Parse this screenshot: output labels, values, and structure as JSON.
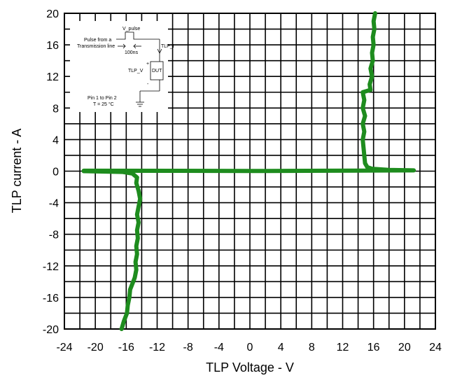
{
  "chart_data": {
    "type": "line",
    "xlabel": "TLP Voltage - V",
    "ylabel": "TLP current - A",
    "xlim": [
      -24,
      24
    ],
    "ylim": [
      -20,
      20
    ],
    "x_ticks": [
      "-24",
      "-20",
      "-16",
      "-12",
      "-8",
      "-4",
      "0",
      "4",
      "8",
      "12",
      "16",
      "20",
      "24"
    ],
    "y_ticks": [
      "20",
      "16",
      "12",
      "8",
      "4",
      "0",
      "-4",
      "-8",
      "-12",
      "-16",
      "-20"
    ],
    "grid": true,
    "grid_minor_x_step": 2,
    "grid_minor_y_step": 2,
    "series_color": "#1e8c1e",
    "series": [
      {
        "points": [
          [
            -21.5,
            0.05
          ],
          [
            -10,
            0.04
          ],
          [
            0,
            0.02
          ],
          [
            10,
            0.05
          ],
          [
            16,
            0.08
          ],
          [
            21.2,
            0.1
          ],
          [
            18,
            0.15
          ],
          [
            15.8,
            0.3
          ],
          [
            15.2,
            0.5
          ],
          [
            14.9,
            1.0
          ],
          [
            14.8,
            2.0
          ],
          [
            14.7,
            3.0
          ],
          [
            14.6,
            4.0
          ],
          [
            14.8,
            5.0
          ],
          [
            14.6,
            6.0
          ],
          [
            14.9,
            7.0
          ],
          [
            14.6,
            8.0
          ],
          [
            14.8,
            9.0
          ],
          [
            14.6,
            10.0
          ],
          [
            15.6,
            10.3
          ],
          [
            15.5,
            11.0
          ],
          [
            15.8,
            12.0
          ],
          [
            15.6,
            13.0
          ],
          [
            15.9,
            14.0
          ],
          [
            15.8,
            15.0
          ],
          [
            16.0,
            16.0
          ],
          [
            15.9,
            17.0
          ],
          [
            16.1,
            18.0
          ],
          [
            16.0,
            19.0
          ],
          [
            16.2,
            20.0
          ]
        ]
      },
      {
        "points": [
          [
            -21.5,
            0.0
          ],
          [
            -16.5,
            -0.1
          ],
          [
            -15.2,
            -0.3
          ],
          [
            -14.6,
            -0.8
          ],
          [
            -14.7,
            -1.5
          ],
          [
            -14.4,
            -2.5
          ],
          [
            -14.2,
            -3.5
          ],
          [
            -14.4,
            -4.5
          ],
          [
            -14.6,
            -5.5
          ],
          [
            -14.4,
            -6.5
          ],
          [
            -14.6,
            -7.5
          ],
          [
            -14.5,
            -8.5
          ],
          [
            -14.7,
            -9.5
          ],
          [
            -14.6,
            -10.5
          ],
          [
            -14.8,
            -11.5
          ],
          [
            -14.7,
            -12.5
          ],
          [
            -14.9,
            -13.5
          ],
          [
            -15.3,
            -14.5
          ],
          [
            -15.5,
            -15.0
          ],
          [
            -15.6,
            -16.0
          ],
          [
            -15.8,
            -17.0
          ],
          [
            -15.9,
            -18.0
          ],
          [
            -16.3,
            -19.0
          ],
          [
            -16.6,
            -20.0
          ]
        ]
      }
    ]
  },
  "inset": {
    "v_pulse": "V_pulse",
    "pulse_line1": "Pulse from a",
    "pulse_line2": "Transmission line",
    "duration": "100ns",
    "tlp_i": "TLP_I",
    "plus": "+",
    "minus": "-",
    "tlp_v": "TLP_V",
    "dut": "DUT",
    "cond_line1": "Pin 1 to Pin 2",
    "cond_line2": "T = 25 °C"
  }
}
